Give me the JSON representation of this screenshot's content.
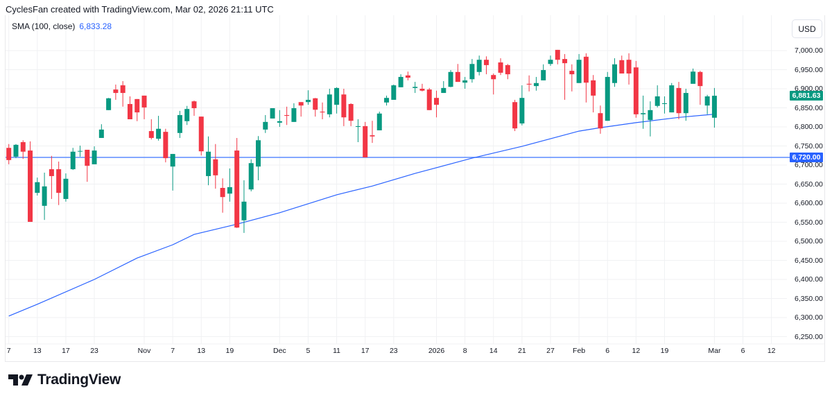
{
  "header": {
    "attribution": "CyclesFan created with TradingView.com, Mar 02, 2026 21:11 UTC"
  },
  "legend": {
    "indicator": "SMA (100, close)",
    "value": "6,833.28"
  },
  "price_axis": {
    "currency_button": "USD"
  },
  "branding": {
    "logo_text": "TradingView"
  },
  "colors": {
    "up": "#089981",
    "down": "#f23645",
    "sma": "#2962ff",
    "hline": "#5b8cff",
    "grid": "#f0f1f3"
  },
  "chart_data": {
    "type": "candlestick",
    "title": "",
    "ylim": [
      6225,
      7025
    ],
    "grid": true,
    "y_ticks": [
      "6,250.00",
      "6,300.00",
      "6,350.00",
      "6,400.00",
      "6,450.00",
      "6,500.00",
      "6,550.00",
      "6,600.00",
      "6,650.00",
      "6,700.00",
      "6,750.00",
      "6,800.00",
      "6,850.00",
      "6,900.00",
      "6,950.00",
      "7,000.00"
    ],
    "x_ticks": [
      {
        "label": "7",
        "date": "2025-10-07"
      },
      {
        "label": "13",
        "date": "2025-10-13"
      },
      {
        "label": "17",
        "date": "2025-10-17"
      },
      {
        "label": "23",
        "date": "2025-10-23"
      },
      {
        "label": "Nov",
        "date": "2025-11-03"
      },
      {
        "label": "7",
        "date": "2025-11-07"
      },
      {
        "label": "13",
        "date": "2025-11-13"
      },
      {
        "label": "19",
        "date": "2025-11-19"
      },
      {
        "label": "Dec",
        "date": "2025-12-01"
      },
      {
        "label": "5",
        "date": "2025-12-05"
      },
      {
        "label": "11",
        "date": "2025-12-11"
      },
      {
        "label": "17",
        "date": "2025-12-17"
      },
      {
        "label": "23",
        "date": "2025-12-23"
      },
      {
        "label": "2026",
        "date": "2026-01-02"
      },
      {
        "label": "8",
        "date": "2026-01-08"
      },
      {
        "label": "14",
        "date": "2026-01-14"
      },
      {
        "label": "21",
        "date": "2026-01-21"
      },
      {
        "label": "27",
        "date": "2026-01-27"
      },
      {
        "label": "Feb",
        "date": "2026-02-02"
      },
      {
        "label": "6",
        "date": "2026-02-06"
      },
      {
        "label": "12",
        "date": "2026-02-12"
      },
      {
        "label": "19",
        "date": "2026-02-19"
      },
      {
        "label": "Mar",
        "date": "2026-03-02"
      },
      {
        "label": "6",
        "date": "2026-03-06"
      },
      {
        "label": "12",
        "date": "2026-03-12"
      }
    ],
    "candles_fields": [
      "date",
      "open",
      "high",
      "low",
      "close"
    ],
    "candles": [
      [
        "2025-10-07",
        6745,
        6755,
        6702,
        6713
      ],
      [
        "2025-10-08",
        6722,
        6755,
        6718,
        6753
      ],
      [
        "2025-10-09",
        6760,
        6765,
        6716,
        6735
      ],
      [
        "2025-10-10",
        6738,
        6762,
        6551,
        6551
      ],
      [
        "2025-10-13",
        6627,
        6667,
        6620,
        6655
      ],
      [
        "2025-10-14",
        6593,
        6680,
        6556,
        6644
      ],
      [
        "2025-10-15",
        6689,
        6724,
        6611,
        6671
      ],
      [
        "2025-10-16",
        6689,
        6709,
        6595,
        6627
      ],
      [
        "2025-10-17",
        6611,
        6678,
        6604,
        6664
      ],
      [
        "2025-10-20",
        6689,
        6745,
        6687,
        6735
      ],
      [
        "2025-10-21",
        6736,
        6751,
        6722,
        6737
      ],
      [
        "2025-10-22",
        6740,
        6740,
        6656,
        6698
      ],
      [
        "2025-10-23",
        6702,
        6749,
        6702,
        6738
      ],
      [
        "2025-10-24",
        6771,
        6807,
        6771,
        6793
      ],
      [
        "2025-10-27",
        6844,
        6876,
        6844,
        6875
      ],
      [
        "2025-10-28",
        6898,
        6911,
        6871,
        6889
      ],
      [
        "2025-10-29",
        6909,
        6920,
        6853,
        6889
      ],
      [
        "2025-10-30",
        6860,
        6880,
        6820,
        6820
      ],
      [
        "2025-10-31",
        6873,
        6873,
        6815,
        6838
      ],
      [
        "2025-11-03",
        6882,
        6882,
        6820,
        6851
      ],
      [
        "2025-11-04",
        6789,
        6820,
        6767,
        6771
      ],
      [
        "2025-11-05",
        6769,
        6829,
        6764,
        6795
      ],
      [
        "2025-11-06",
        6787,
        6795,
        6707,
        6718
      ],
      [
        "2025-11-07",
        6696,
        6729,
        6633,
        6729
      ],
      [
        "2025-11-10",
        6784,
        6842,
        6771,
        6831
      ],
      [
        "2025-11-11",
        6815,
        6855,
        6805,
        6847
      ],
      [
        "2025-11-12",
        6867,
        6869,
        6829,
        6849
      ],
      [
        "2025-11-13",
        6827,
        6827,
        6725,
        6736
      ],
      [
        "2025-11-14",
        6671,
        6775,
        6647,
        6735
      ],
      [
        "2025-11-17",
        6715,
        6755,
        6638,
        6673
      ],
      [
        "2025-11-18",
        6640,
        6665,
        6575,
        6616
      ],
      [
        "2025-11-19",
        6625,
        6691,
        6604,
        6642
      ],
      [
        "2025-11-20",
        6738,
        6771,
        6535,
        6536
      ],
      [
        "2025-11-21",
        6555,
        6660,
        6522,
        6604
      ],
      [
        "2025-11-24",
        6636,
        6715,
        6631,
        6705
      ],
      [
        "2025-11-25",
        6696,
        6776,
        6660,
        6765
      ],
      [
        "2025-11-26",
        6793,
        6831,
        6784,
        6813
      ],
      [
        "2025-11-28",
        6822,
        6849,
        6822,
        6849
      ],
      [
        "2025-12-01",
        6811,
        6844,
        6800,
        6815
      ],
      [
        "2025-12-02",
        6831,
        6853,
        6805,
        6829
      ],
      [
        "2025-12-03",
        6813,
        6862,
        6813,
        6849
      ],
      [
        "2025-12-04",
        6865,
        6865,
        6827,
        6856
      ],
      [
        "2025-12-05",
        6865,
        6896,
        6858,
        6871
      ],
      [
        "2025-12-08",
        6875,
        6876,
        6827,
        6845
      ],
      [
        "2025-12-09",
        6840,
        6864,
        6820,
        6838
      ],
      [
        "2025-12-10",
        6833,
        6900,
        6825,
        6885
      ],
      [
        "2025-12-11",
        6858,
        6904,
        6835,
        6902
      ],
      [
        "2025-12-12",
        6885,
        6900,
        6802,
        6825
      ],
      [
        "2025-12-15",
        6860,
        6862,
        6802,
        6816
      ],
      [
        "2025-12-16",
        6800,
        6820,
        6760,
        6802
      ],
      [
        "2025-12-17",
        6802,
        6813,
        6720,
        6720
      ],
      [
        "2025-12-18",
        6778,
        6816,
        6758,
        6775
      ],
      [
        "2025-12-19",
        6791,
        6840,
        6791,
        6835
      ],
      [
        "2025-12-22",
        6864,
        6882,
        6856,
        6876
      ],
      [
        "2025-12-23",
        6871,
        6911,
        6871,
        6909
      ],
      [
        "2025-12-24",
        6904,
        6938,
        6904,
        6931
      ],
      [
        "2025-12-26",
        6935,
        6945,
        6922,
        6929
      ],
      [
        "2025-12-29",
        6902,
        6918,
        6889,
        6905
      ],
      [
        "2025-12-30",
        6900,
        6913,
        6893,
        6895
      ],
      [
        "2025-12-31",
        6898,
        6902,
        6844,
        6844
      ],
      [
        "2026-01-02",
        6876,
        6895,
        6825,
        6858
      ],
      [
        "2026-01-05",
        6889,
        6920,
        6889,
        6902
      ],
      [
        "2026-01-06",
        6905,
        6949,
        6904,
        6944
      ],
      [
        "2026-01-07",
        6944,
        6965,
        6918,
        6918
      ],
      [
        "2026-01-08",
        6916,
        6931,
        6900,
        6922
      ],
      [
        "2026-01-09",
        6925,
        6978,
        6916,
        6965
      ],
      [
        "2026-01-12",
        6944,
        6987,
        6935,
        6976
      ],
      [
        "2026-01-13",
        6976,
        6985,
        6938,
        6962
      ],
      [
        "2026-01-14",
        6936,
        6940,
        6885,
        6925
      ],
      [
        "2026-01-15",
        6969,
        6980,
        6936,
        6942
      ],
      [
        "2026-01-16",
        6962,
        6965,
        6925,
        6938
      ],
      [
        "2026-01-20",
        6865,
        6871,
        6789,
        6796
      ],
      [
        "2026-01-21",
        6809,
        6909,
        6804,
        6876
      ],
      [
        "2026-01-22",
        6913,
        6935,
        6893,
        6911
      ],
      [
        "2026-01-23",
        6907,
        6931,
        6895,
        6915
      ],
      [
        "2026-01-26",
        6922,
        6964,
        6922,
        6949
      ],
      [
        "2026-01-27",
        6965,
        6987,
        6960,
        6976
      ],
      [
        "2026-01-28",
        7002,
        7002,
        6964,
        6976
      ],
      [
        "2026-01-29",
        6978,
        6991,
        6871,
        6967
      ],
      [
        "2026-01-30",
        6947,
        6964,
        6893,
        6938
      ],
      [
        "2026-02-02",
        6915,
        6991,
        6915,
        6976
      ],
      [
        "2026-02-03",
        6984,
        6993,
        6864,
        6916
      ],
      [
        "2026-02-04",
        6922,
        6936,
        6838,
        6882
      ],
      [
        "2026-02-05",
        6836,
        6856,
        6782,
        6796
      ],
      [
        "2026-02-06",
        6816,
        6944,
        6816,
        6931
      ],
      [
        "2026-02-09",
        6915,
        6980,
        6905,
        6964
      ],
      [
        "2026-02-10",
        6975,
        6987,
        6940,
        6940
      ],
      [
        "2026-02-11",
        6976,
        6993,
        6911,
        6940
      ],
      [
        "2026-02-12",
        6956,
        6973,
        6824,
        6833
      ],
      [
        "2026-02-13",
        6833,
        6882,
        6795,
        6836
      ],
      [
        "2026-02-17",
        6818,
        6867,
        6775,
        6844
      ],
      [
        "2026-02-18",
        6855,
        6909,
        6851,
        6880
      ],
      [
        "2026-02-19",
        6860,
        6880,
        6835,
        6862
      ],
      [
        "2026-02-20",
        6838,
        6915,
        6838,
        6909
      ],
      [
        "2026-02-23",
        6902,
        6918,
        6820,
        6836
      ],
      [
        "2026-02-24",
        6836,
        6900,
        6816,
        6889
      ],
      [
        "2026-02-25",
        6913,
        6953,
        6913,
        6945
      ],
      [
        "2026-02-26",
        6944,
        6947,
        6858,
        6907
      ],
      [
        "2026-02-27",
        6856,
        6884,
        6833,
        6880
      ],
      [
        "2026-03-02",
        6824,
        6902,
        6798,
        6881.63
      ]
    ],
    "sma_100": [
      [
        "2025-10-07",
        6304
      ],
      [
        "2025-10-13",
        6335
      ],
      [
        "2025-10-23",
        6400
      ],
      [
        "2025-10-31",
        6456
      ],
      [
        "2025-11-07",
        6491
      ],
      [
        "2025-11-12",
        6518
      ],
      [
        "2025-11-20",
        6545
      ],
      [
        "2025-12-01",
        6575
      ],
      [
        "2025-12-11",
        6622
      ],
      [
        "2025-12-18",
        6645
      ],
      [
        "2025-12-29",
        6678
      ],
      [
        "2026-01-09",
        6718
      ],
      [
        "2026-01-21",
        6749
      ],
      [
        "2026-02-02",
        6789
      ],
      [
        "2026-02-05",
        6798
      ],
      [
        "2026-02-12",
        6811
      ],
      [
        "2026-02-23",
        6825
      ],
      [
        "2026-03-02",
        6833.28
      ]
    ],
    "horizontal_line": {
      "value": 6720,
      "label": "6,720.00"
    },
    "last_price": {
      "value": 6881.63,
      "label": "6,881.63"
    }
  }
}
